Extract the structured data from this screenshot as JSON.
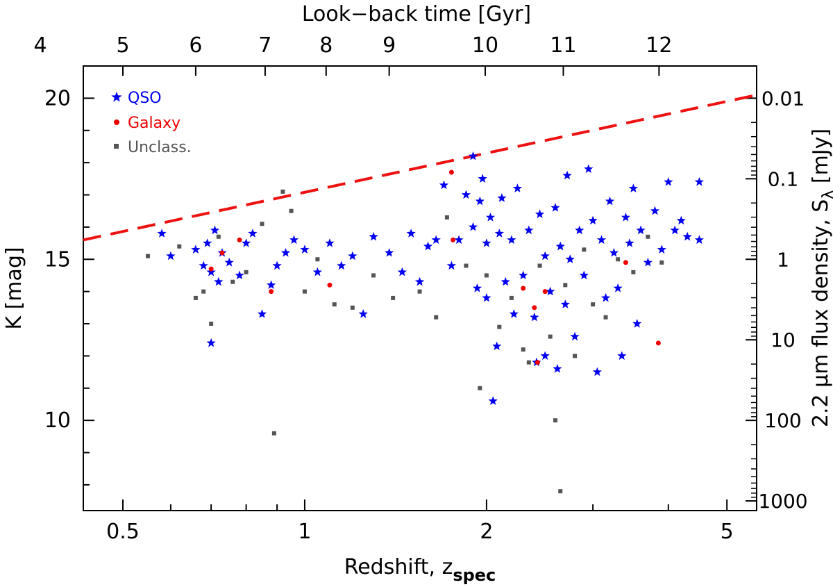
{
  "chart_data": {
    "type": "scatter",
    "title": "",
    "xlabel": "Redshift, z",
    "xlabel_sub": "spec",
    "ylabel": "K [mag]",
    "x_scale": "log",
    "xlim": [
      0.43,
      5.6
    ],
    "ylim_reversed": [
      7.2,
      21.0
    ],
    "x_ticks": [
      0.5,
      1,
      2,
      5
    ],
    "x_tick_labels": [
      "0.5",
      "1",
      "2",
      "5"
    ],
    "y_ticks": [
      10,
      15,
      20
    ],
    "y_tick_labels": [
      "10",
      "15",
      "20"
    ],
    "top_axis": {
      "label": "Look−back time [Gyr]",
      "ticks": [
        {
          "label": "4",
          "z": 0.365
        },
        {
          "label": "5",
          "z": 0.5
        },
        {
          "label": "6",
          "z": 0.66
        },
        {
          "label": "7",
          "z": 0.86
        },
        {
          "label": "8",
          "z": 1.085
        },
        {
          "label": "9",
          "z": 1.38
        },
        {
          "label": "10",
          "z": 1.99
        },
        {
          "label": "11",
          "z": 2.68
        },
        {
          "label": "12",
          "z": 3.86
        }
      ]
    },
    "right_axis": {
      "label": "2.2 μm flux density, S",
      "label_sub": "λ",
      "label_unit": " [mJy]",
      "ticks": [
        {
          "label": "0.01",
          "K": 20.0
        },
        {
          "label": "0.1",
          "K": 17.5
        },
        {
          "label": "1",
          "K": 15.0
        },
        {
          "label": "10",
          "K": 12.5
        },
        {
          "label": "100",
          "K": 10.0
        },
        {
          "label": "1000",
          "K": 7.5
        }
      ]
    },
    "legend": {
      "position": "top-left",
      "entries": [
        {
          "label": "QSO",
          "marker": "star",
          "color": "#0000ee"
        },
        {
          "label": "Galaxy",
          "marker": "circle",
          "color": "#ee0000"
        },
        {
          "label": "Unclass.",
          "marker": "square",
          "color": "#555555"
        }
      ]
    },
    "limit_line": {
      "style": "dashed",
      "color": "#ee1111",
      "points": [
        [
          0.43,
          15.6
        ],
        [
          5.6,
          20.1
        ]
      ]
    },
    "series": [
      {
        "name": "QSO",
        "color": "#0000ee",
        "marker": "star",
        "points": [
          [
            0.58,
            15.8
          ],
          [
            0.6,
            15.1
          ],
          [
            0.66,
            15.3
          ],
          [
            0.68,
            14.8
          ],
          [
            0.69,
            15.5
          ],
          [
            0.7,
            14.6
          ],
          [
            0.7,
            12.4
          ],
          [
            0.71,
            15.9
          ],
          [
            0.72,
            14.3
          ],
          [
            0.73,
            15.2
          ],
          [
            0.75,
            14.9
          ],
          [
            0.78,
            14.5
          ],
          [
            0.8,
            15.5
          ],
          [
            0.82,
            15.8
          ],
          [
            0.85,
            13.3
          ],
          [
            0.88,
            14.2
          ],
          [
            0.9,
            14.8
          ],
          [
            0.93,
            15.2
          ],
          [
            0.96,
            15.6
          ],
          [
            1.0,
            15.3
          ],
          [
            1.05,
            14.6
          ],
          [
            1.1,
            15.5
          ],
          [
            1.15,
            14.8
          ],
          [
            1.2,
            15.1
          ],
          [
            1.25,
            13.3
          ],
          [
            1.3,
            15.7
          ],
          [
            1.38,
            15.2
          ],
          [
            1.45,
            14.6
          ],
          [
            1.5,
            15.8
          ],
          [
            1.55,
            14.3
          ],
          [
            1.6,
            15.4
          ],
          [
            1.65,
            15.6
          ],
          [
            1.7,
            17.3
          ],
          [
            1.75,
            14.8
          ],
          [
            1.8,
            15.6
          ],
          [
            1.85,
            17.0
          ],
          [
            1.9,
            16.0
          ],
          [
            1.9,
            18.2
          ],
          [
            1.93,
            14.1
          ],
          [
            1.95,
            16.8
          ],
          [
            1.97,
            17.5
          ],
          [
            2.0,
            15.5
          ],
          [
            2.0,
            13.8
          ],
          [
            2.03,
            16.3
          ],
          [
            2.05,
            10.6
          ],
          [
            2.08,
            12.3
          ],
          [
            2.1,
            15.8
          ],
          [
            2.12,
            16.9
          ],
          [
            2.15,
            14.3
          ],
          [
            2.2,
            15.6
          ],
          [
            2.22,
            13.3
          ],
          [
            2.25,
            17.2
          ],
          [
            2.3,
            14.5
          ],
          [
            2.35,
            15.9
          ],
          [
            2.4,
            13.2
          ],
          [
            2.42,
            11.8
          ],
          [
            2.45,
            16.4
          ],
          [
            2.5,
            12.0
          ],
          [
            2.5,
            15.1
          ],
          [
            2.55,
            14.0
          ],
          [
            2.6,
            16.6
          ],
          [
            2.62,
            11.6
          ],
          [
            2.65,
            15.4
          ],
          [
            2.7,
            13.6
          ],
          [
            2.72,
            17.6
          ],
          [
            2.75,
            15.0
          ],
          [
            2.8,
            12.6
          ],
          [
            2.85,
            15.9
          ],
          [
            2.9,
            14.5
          ],
          [
            2.95,
            17.8
          ],
          [
            3.0,
            16.2
          ],
          [
            3.05,
            11.5
          ],
          [
            3.1,
            15.6
          ],
          [
            3.15,
            13.8
          ],
          [
            3.2,
            16.8
          ],
          [
            3.25,
            15.2
          ],
          [
            3.3,
            14.1
          ],
          [
            3.35,
            12.0
          ],
          [
            3.4,
            16.3
          ],
          [
            3.45,
            15.5
          ],
          [
            3.5,
            17.2
          ],
          [
            3.55,
            13.0
          ],
          [
            3.6,
            15.9
          ],
          [
            3.7,
            14.9
          ],
          [
            3.8,
            16.5
          ],
          [
            3.9,
            15.3
          ],
          [
            4.0,
            17.4
          ],
          [
            4.1,
            15.9
          ],
          [
            4.2,
            16.2
          ],
          [
            4.3,
            15.7
          ],
          [
            4.5,
            17.4
          ],
          [
            4.5,
            15.6
          ]
        ]
      },
      {
        "name": "Galaxy",
        "color": "#ee0000",
        "marker": "circle",
        "points": [
          [
            0.7,
            14.7
          ],
          [
            0.73,
            15.2
          ],
          [
            0.78,
            15.6
          ],
          [
            0.88,
            14.0
          ],
          [
            1.1,
            14.2
          ],
          [
            1.75,
            17.7
          ],
          [
            1.76,
            15.6
          ],
          [
            2.3,
            14.1
          ],
          [
            2.4,
            13.5
          ],
          [
            2.5,
            14.0
          ],
          [
            2.43,
            11.8
          ],
          [
            3.4,
            14.9
          ],
          [
            3.85,
            12.4
          ]
        ]
      },
      {
        "name": "Unclass.",
        "color": "#555555",
        "marker": "square",
        "points": [
          [
            0.55,
            15.1
          ],
          [
            0.62,
            15.4
          ],
          [
            0.66,
            13.8
          ],
          [
            0.68,
            14.0
          ],
          [
            0.7,
            13.0
          ],
          [
            0.72,
            15.7
          ],
          [
            0.76,
            14.3
          ],
          [
            0.8,
            14.6
          ],
          [
            0.85,
            16.1
          ],
          [
            0.89,
            9.6
          ],
          [
            0.92,
            17.1
          ],
          [
            0.95,
            16.5
          ],
          [
            1.0,
            14.0
          ],
          [
            1.05,
            15.0
          ],
          [
            1.12,
            13.6
          ],
          [
            1.2,
            13.5
          ],
          [
            1.3,
            14.5
          ],
          [
            1.4,
            13.8
          ],
          [
            1.55,
            14.0
          ],
          [
            1.65,
            13.2
          ],
          [
            1.72,
            16.3
          ],
          [
            1.85,
            14.8
          ],
          [
            1.95,
            11.0
          ],
          [
            2.0,
            14.5
          ],
          [
            2.1,
            12.9
          ],
          [
            2.2,
            13.8
          ],
          [
            2.3,
            12.2
          ],
          [
            2.35,
            11.8
          ],
          [
            2.45,
            14.8
          ],
          [
            2.55,
            12.6
          ],
          [
            2.6,
            10.0
          ],
          [
            2.65,
            7.8
          ],
          [
            2.7,
            14.2
          ],
          [
            2.8,
            12.0
          ],
          [
            2.9,
            15.3
          ],
          [
            3.0,
            13.6
          ],
          [
            3.15,
            13.2
          ],
          [
            3.3,
            15.0
          ],
          [
            3.5,
            14.6
          ],
          [
            3.7,
            15.7
          ],
          [
            3.9,
            14.9
          ]
        ]
      }
    ]
  }
}
